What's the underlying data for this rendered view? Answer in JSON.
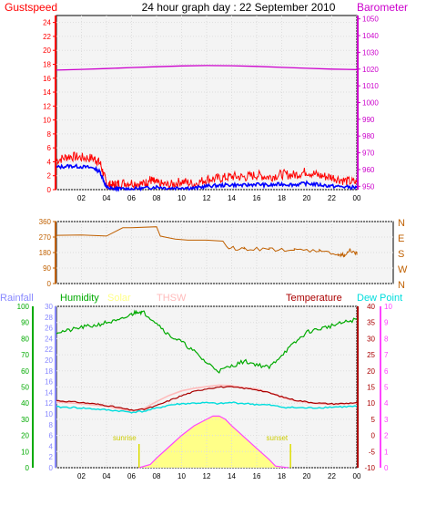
{
  "header": {
    "title": "24 hour graph day : 22 September 2010",
    "left_label": "Gustspeed",
    "right_label": "Barometer"
  },
  "colors": {
    "gust": "#ff0000",
    "avg_wind": "#0000ff",
    "barometer": "#cc00cc",
    "direction": "#c06000",
    "rain": "#8888ff",
    "humidity": "#00aa00",
    "solar": "#ffff88",
    "thsw": "#ffbbbb",
    "temperature": "#aa0000",
    "dew_point": "#00dddd",
    "uv": "#ff44ff",
    "grid_bg": "#f4f4f4"
  },
  "chart_data": [
    {
      "type": "line",
      "name": "wind-barometer",
      "x_ticks": [
        "02",
        "04",
        "06",
        "08",
        "10",
        "12",
        "14",
        "16",
        "18",
        "20",
        "22",
        "00"
      ],
      "y_left": {
        "label": "Gustspeed",
        "ticks": [
          0,
          2,
          4,
          6,
          8,
          10,
          12,
          14,
          16,
          18,
          20,
          22,
          24
        ],
        "range": [
          0,
          25
        ]
      },
      "y_right": {
        "label": "Barometer",
        "ticks": [
          950,
          960,
          970,
          980,
          990,
          1000,
          1010,
          1020,
          1030,
          1040,
          1050
        ],
        "range": [
          948,
          1052
        ]
      },
      "series": [
        {
          "key": "gust",
          "axis": "left",
          "x": [
            0,
            1,
            2,
            3,
            3.5,
            4,
            4.5,
            5,
            6,
            7,
            7.5,
            8,
            9,
            10,
            11,
            12,
            13,
            14,
            15,
            16,
            17,
            18,
            19,
            20,
            21,
            22,
            23,
            24
          ],
          "y": [
            4.2,
            4.8,
            4.6,
            4.5,
            3.8,
            0.8,
            0.6,
            0.9,
            1.0,
            0.8,
            1.4,
            0.9,
            0.6,
            1.2,
            0.8,
            1.5,
            1.6,
            1.9,
            1.8,
            2.1,
            1.8,
            2.2,
            2.1,
            2.6,
            2.0,
            1.8,
            1.3,
            1.0
          ]
        },
        {
          "key": "avg_wind",
          "axis": "left",
          "x": [
            0,
            1,
            2,
            3,
            3.5,
            4,
            4.5,
            5,
            6,
            7,
            8,
            9,
            10,
            11,
            12,
            13,
            14,
            15,
            16,
            17,
            18,
            19,
            20,
            21,
            22,
            23,
            24
          ],
          "y": [
            3.2,
            3.4,
            3.3,
            3.1,
            2.5,
            0.3,
            0.1,
            0.1,
            0.1,
            0.2,
            0.4,
            0.2,
            0.3,
            0.2,
            0.5,
            0.6,
            0.7,
            0.6,
            0.8,
            0.6,
            0.8,
            0.7,
            0.9,
            0.7,
            0.5,
            0.4,
            0.3
          ]
        },
        {
          "key": "barometer",
          "axis": "right",
          "x": [
            0,
            2,
            4,
            6,
            8,
            10,
            12,
            14,
            16,
            18,
            20,
            22,
            24
          ],
          "y": [
            1019.4,
            1019.8,
            1020.3,
            1020.9,
            1021.4,
            1021.9,
            1022.1,
            1022.0,
            1021.6,
            1021.0,
            1020.5,
            1020.0,
            1019.7
          ]
        }
      ]
    },
    {
      "type": "line",
      "name": "wind-direction",
      "x_ticks": [
        "02",
        "04",
        "06",
        "08",
        "10",
        "12",
        "14",
        "16",
        "18",
        "20",
        "22",
        "00"
      ],
      "y_left": {
        "ticks": [
          0,
          90,
          180,
          270,
          360
        ],
        "range": [
          0,
          360
        ]
      },
      "y_right": {
        "ticks": [
          "N",
          "W",
          "S",
          "E",
          "N"
        ]
      },
      "series": [
        {
          "key": "direction",
          "x": [
            0,
            2,
            4,
            5.3,
            6,
            8,
            8.3,
            8.8,
            9.5,
            10.5,
            12,
            13.3,
            13.6,
            15,
            17,
            19,
            21,
            22.5,
            23,
            23.5,
            24
          ],
          "y": [
            280,
            282,
            276,
            324,
            324,
            330,
            276,
            268,
            258,
            252,
            252,
            246,
            208,
            202,
            198,
            193,
            187,
            170,
            165,
            195,
            175
          ]
        }
      ]
    },
    {
      "type": "line",
      "name": "weather-combined",
      "x_ticks": [
        "02",
        "04",
        "06",
        "08",
        "10",
        "12",
        "14",
        "16",
        "18",
        "20",
        "22",
        "00"
      ],
      "legend": [
        "Rainfall",
        "Humidity",
        "Solar",
        "THSW",
        "Temperature",
        "Dew Point"
      ],
      "axes_left": [
        {
          "name": "Humidity",
          "ticks": [
            0,
            10,
            20,
            30,
            40,
            50,
            60,
            70,
            80,
            90,
            100
          ]
        },
        {
          "name": "Rainfall",
          "ticks": [
            0,
            2,
            4,
            6,
            8,
            10,
            12,
            14,
            16,
            18,
            20,
            22,
            24,
            26,
            28,
            30
          ]
        }
      ],
      "axes_right": [
        {
          "name": "Temperature",
          "ticks": [
            -10,
            -5,
            0,
            5,
            10,
            15,
            20,
            25,
            30,
            35,
            40
          ]
        },
        {
          "name": "UV",
          "ticks": [
            0,
            1,
            2,
            3,
            4,
            5,
            6,
            7,
            8,
            9,
            10
          ]
        }
      ],
      "annotations": [
        {
          "text": "sunrise",
          "x": 6.6
        },
        {
          "text": "sunset",
          "x": 18.7
        }
      ],
      "series": [
        {
          "key": "humidity",
          "x": [
            0,
            1,
            2,
            3,
            4,
            5,
            6,
            6.5,
            7,
            8,
            9,
            10,
            11,
            12,
            13,
            14,
            15,
            16,
            17,
            18,
            19,
            20,
            21,
            22,
            23,
            24
          ],
          "y": [
            84,
            85,
            87,
            88,
            90,
            91,
            95,
            97,
            96,
            90,
            82,
            78,
            72,
            65,
            60,
            63,
            66,
            64,
            62,
            70,
            77,
            84,
            86,
            88,
            90,
            92
          ]
        },
        {
          "key": "temperature",
          "x": [
            0,
            1,
            2,
            3,
            4,
            5,
            6,
            7,
            8,
            9,
            10,
            11,
            12,
            13,
            14,
            15,
            16,
            17,
            18,
            19,
            20,
            21,
            22,
            23,
            24
          ],
          "y": [
            10.8,
            10.5,
            10.2,
            9.8,
            9.3,
            8.6,
            7.8,
            8.1,
            9.2,
            10.8,
            12.3,
            13.6,
            14.5,
            15.0,
            15.0,
            14.6,
            14.2,
            13.2,
            12.0,
            11.0,
            10.4,
            10.0,
            9.8,
            9.9,
            10.2
          ]
        },
        {
          "key": "thsw",
          "x": [
            0,
            1,
            2,
            3,
            4,
            5,
            6,
            7,
            8,
            9,
            10,
            11,
            12,
            13,
            14,
            15,
            16,
            17,
            18,
            19,
            20,
            21,
            22,
            23,
            24
          ],
          "y": [
            10.4,
            10.1,
            9.8,
            9.4,
            9.0,
            8.3,
            7.6,
            8.4,
            10.5,
            12.4,
            13.8,
            14.6,
            15.1,
            15.6,
            15.4,
            14.8,
            14.4,
            13.3,
            11.8,
            10.8,
            10.2,
            9.8,
            9.6,
            9.7,
            10.0
          ]
        },
        {
          "key": "dew_point",
          "x": [
            0,
            1,
            2,
            3,
            4,
            5,
            6,
            7,
            8,
            9,
            10,
            11,
            12,
            13,
            14,
            15,
            16,
            17,
            18,
            19,
            20,
            21,
            22,
            23,
            24
          ],
          "y": [
            8.8,
            8.7,
            8.5,
            8.2,
            7.9,
            7.6,
            7.2,
            7.5,
            8.4,
            9.4,
            9.8,
            10.0,
            10.1,
            9.8,
            10.2,
            9.9,
            9.6,
            9.4,
            8.8,
            8.6,
            8.5,
            8.6,
            8.8,
            8.9,
            9.0
          ]
        },
        {
          "key": "solar_uv",
          "x": [
            6.6,
            7.5,
            8,
            9,
            10,
            11,
            12,
            12.5,
            13,
            13.5,
            14,
            15,
            16,
            17,
            17.5,
            18.5
          ],
          "y": [
            0,
            0.2,
            0.6,
            1.3,
            2.0,
            2.6,
            3.0,
            3.2,
            3.2,
            3.0,
            2.6,
            1.9,
            1.2,
            0.5,
            0.1,
            0
          ]
        }
      ]
    }
  ]
}
